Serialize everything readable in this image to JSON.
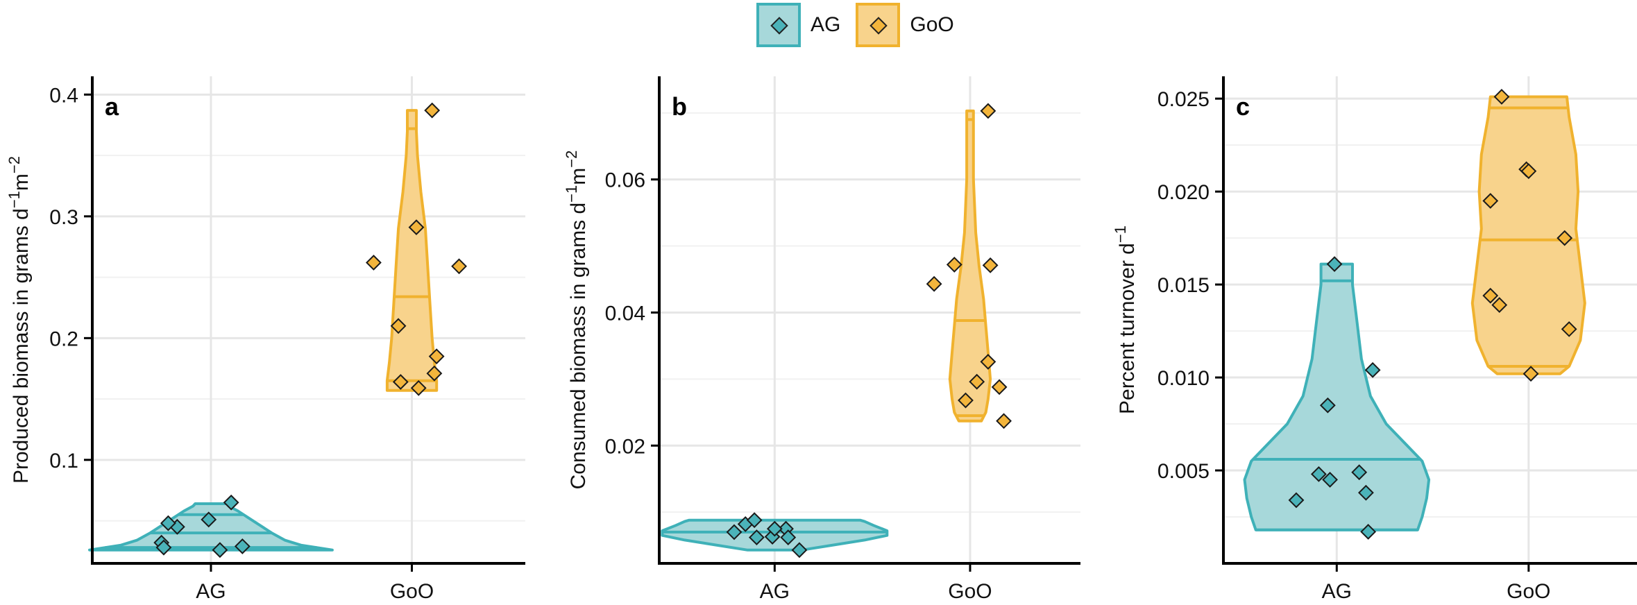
{
  "legend": {
    "items": [
      {
        "label": "AG",
        "fill": "#a7d8da",
        "stroke": "#3fb1b8"
      },
      {
        "label": "GoO",
        "fill": "#f8d38c",
        "stroke": "#f0b22e"
      }
    ]
  },
  "colors": {
    "AG": {
      "fill": "#a7d8da",
      "stroke": "#3fb1b8",
      "point": "#4bb3b9"
    },
    "GoO": {
      "fill": "#f8d38c",
      "stroke": "#f0b22e",
      "point": "#f3b53c"
    },
    "axis": "#000000",
    "grid": "#e6e6e6"
  },
  "chart_data": [
    {
      "type": "violin",
      "panel_label": "a",
      "ylabel_main": "Produced biomass in grams d",
      "ylabel_sup1": "−1",
      "ylabel_mid": "m",
      "ylabel_sup2": "−2",
      "categories": [
        "AG",
        "GoO"
      ],
      "ylim": [
        0.015,
        0.415
      ],
      "yticks": [
        0.1,
        0.2,
        0.3,
        0.4
      ],
      "ytick_labels": [
        "0.1",
        "0.2",
        "0.3",
        "0.4"
      ],
      "grid": true,
      "series": [
        {
          "name": "AG",
          "points": [
            0.032,
            0.045,
            0.048,
            0.028,
            0.051,
            0.065,
            0.029,
            0.026
          ],
          "jitter": [
            -0.22,
            -0.15,
            -0.19,
            -0.21,
            -0.01,
            0.09,
            0.14,
            0.04
          ],
          "violin_y": [
            0.026,
            0.03,
            0.034,
            0.04,
            0.046,
            0.052,
            0.058,
            0.062,
            0.064
          ],
          "violin_w": [
            0.54,
            0.4,
            0.33,
            0.27,
            0.22,
            0.17,
            0.12,
            0.08,
            0.07
          ],
          "quantiles": [
            0.028,
            0.04,
            0.055
          ]
        },
        {
          "name": "GoO",
          "points": [
            0.387,
            0.291,
            0.262,
            0.259,
            0.21,
            0.185,
            0.171,
            0.164,
            0.159
          ],
          "jitter": [
            0.09,
            0.02,
            -0.17,
            0.21,
            -0.06,
            0.11,
            0.1,
            -0.05,
            0.03
          ],
          "violin_y": [
            0.157,
            0.165,
            0.18,
            0.2,
            0.23,
            0.26,
            0.29,
            0.32,
            0.35,
            0.37,
            0.387
          ],
          "violin_w": [
            0.11,
            0.11,
            0.1,
            0.09,
            0.08,
            0.07,
            0.06,
            0.04,
            0.025,
            0.02,
            0.02
          ],
          "quantiles": [
            0.165,
            0.234,
            0.372
          ]
        }
      ]
    },
    {
      "type": "violin",
      "panel_label": "b",
      "ylabel_main": "Consumed biomass in grams d",
      "ylabel_sup1": "−1",
      "ylabel_mid": "m",
      "ylabel_sup2": "−2",
      "categories": [
        "AG",
        "GoO"
      ],
      "ylim": [
        0.0023,
        0.0755
      ],
      "yticks": [
        0.02,
        0.04,
        0.06
      ],
      "ytick_labels": [
        "0.02",
        "0.04",
        "0.06"
      ],
      "grid": true,
      "series": [
        {
          "name": "AG",
          "points": [
            0.007,
            0.0082,
            0.0088,
            0.0062,
            0.0063,
            0.0075,
            0.0062,
            0.0043,
            0.0075
          ],
          "jitter": [
            -0.18,
            -0.13,
            -0.09,
            -0.08,
            -0.01,
            0.05,
            0.06,
            0.11,
            0.0
          ],
          "violin_y": [
            0.0043,
            0.005,
            0.0058,
            0.0065,
            0.0072,
            0.008,
            0.0086,
            0.0088
          ],
          "violin_w": [
            0.12,
            0.25,
            0.4,
            0.5,
            0.5,
            0.44,
            0.4,
            0.38
          ],
          "quantiles": [
            0.007
          ]
        },
        {
          "name": "GoO",
          "points": [
            0.0703,
            0.0472,
            0.0471,
            0.0443,
            0.0326,
            0.0296,
            0.0288,
            0.0268,
            0.0237
          ],
          "jitter": [
            0.08,
            -0.07,
            0.09,
            -0.16,
            0.08,
            0.03,
            0.13,
            -0.02,
            0.15
          ],
          "violin_y": [
            0.0237,
            0.025,
            0.027,
            0.03,
            0.034,
            0.038,
            0.042,
            0.047,
            0.052,
            0.06,
            0.0703
          ],
          "violin_w": [
            0.05,
            0.07,
            0.08,
            0.09,
            0.08,
            0.07,
            0.06,
            0.04,
            0.025,
            0.015,
            0.015
          ],
          "quantiles": [
            0.0245,
            0.0388,
            0.069
          ]
        }
      ]
    },
    {
      "type": "violin",
      "panel_label": "c",
      "ylabel_main": "Percent turnover d",
      "ylabel_sup1": "−1",
      "ylabel_mid": "",
      "ylabel_sup2": "",
      "categories": [
        "AG",
        "GoO"
      ],
      "ylim": [
        0.0,
        0.0262
      ],
      "yticks": [
        0.005,
        0.01,
        0.015,
        0.02,
        0.025
      ],
      "ytick_labels": [
        "0.005",
        "0.010",
        "0.015",
        "0.020",
        "0.025"
      ],
      "grid": true,
      "series": [
        {
          "name": "AG",
          "points": [
            0.0161,
            0.0104,
            0.0085,
            0.0049,
            0.0048,
            0.0045,
            0.0038,
            0.0034,
            0.0017
          ],
          "jitter": [
            -0.01,
            0.16,
            -0.04,
            0.1,
            -0.08,
            -0.03,
            0.13,
            -0.18,
            0.14
          ],
          "violin_y": [
            0.0018,
            0.0025,
            0.0035,
            0.0045,
            0.0055,
            0.0065,
            0.0075,
            0.009,
            0.011,
            0.013,
            0.015,
            0.0161
          ],
          "violin_w": [
            0.36,
            0.38,
            0.4,
            0.41,
            0.38,
            0.3,
            0.22,
            0.15,
            0.11,
            0.09,
            0.07,
            0.07
          ],
          "quantiles": [
            0.0018,
            0.0056,
            0.0152
          ]
        },
        {
          "name": "GoO",
          "points": [
            0.0251,
            0.0212,
            0.0211,
            0.0195,
            0.0175,
            0.0144,
            0.0139,
            0.0126,
            0.0102
          ],
          "jitter": [
            -0.12,
            -0.01,
            0.0,
            -0.17,
            0.16,
            -0.17,
            -0.13,
            0.18,
            0.01
          ],
          "violin_y": [
            0.0102,
            0.0106,
            0.012,
            0.014,
            0.016,
            0.018,
            0.02,
            0.022,
            0.024,
            0.0251
          ],
          "violin_w": [
            0.14,
            0.18,
            0.23,
            0.25,
            0.23,
            0.21,
            0.22,
            0.21,
            0.18,
            0.17
          ],
          "quantiles": [
            0.0106,
            0.0174,
            0.0245
          ]
        }
      ]
    }
  ]
}
